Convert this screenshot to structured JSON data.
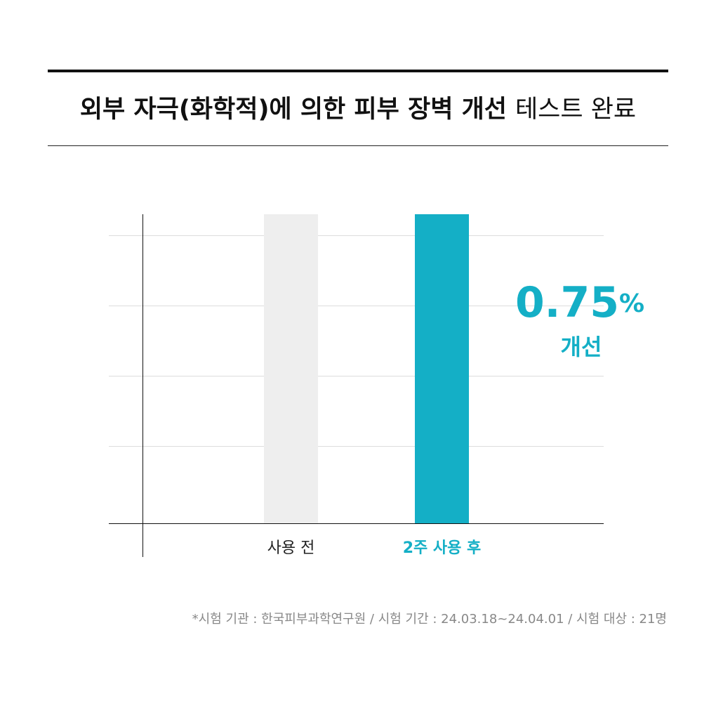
{
  "chart_data": {
    "type": "bar",
    "title": "외부 자극(화학적)에 의한 피부 장벽 개선",
    "title_suffix": "테스트 완료",
    "categories": [
      "사용 전",
      "2주 사용 후"
    ],
    "values": [
      100,
      100
    ],
    "colors": [
      "#eeeeee",
      "#14afc6"
    ],
    "label_colors": [
      "#222222",
      "#14afc6"
    ],
    "ylim": [
      0,
      100
    ],
    "annotation": {
      "value": "0.75",
      "unit": "%",
      "caption": "개선",
      "color": "#14afc6"
    },
    "footnote": "*시험 기관 : 한국피부과학연구원 / 시험 기간 : 24.03.18~24.04.01 / 시험 대상 : 21명"
  }
}
